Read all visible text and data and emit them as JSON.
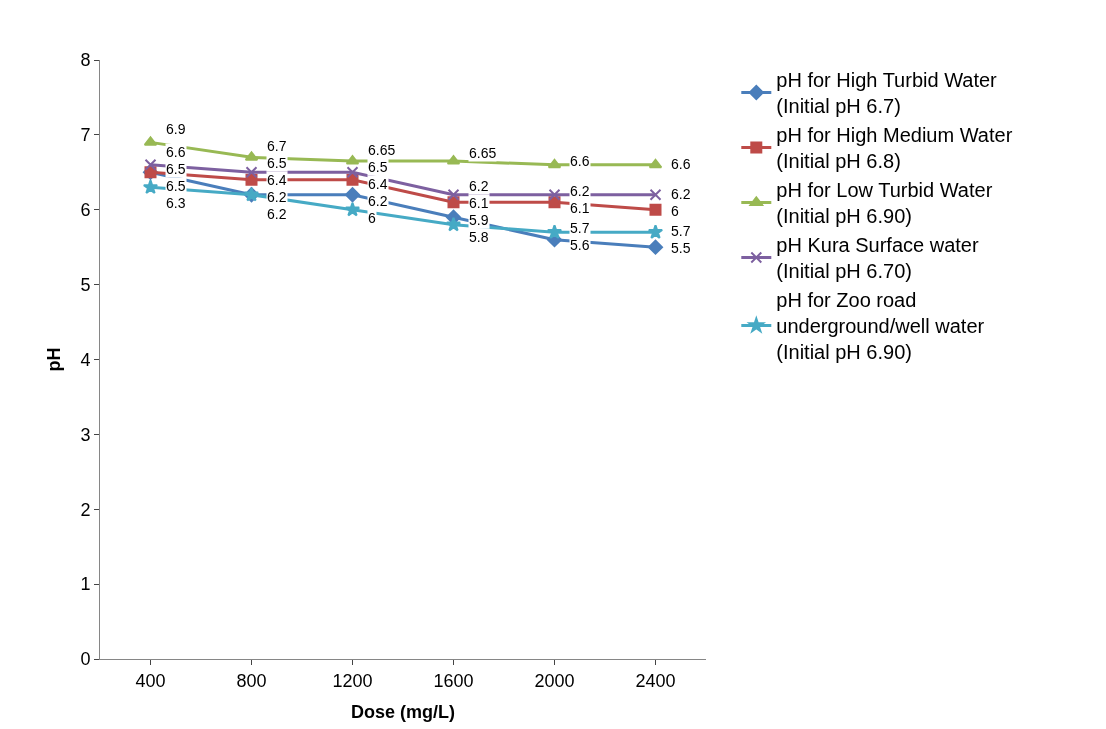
{
  "chart_data": {
    "type": "line",
    "xlabel": "Dose (mg/L)",
    "ylabel": "pH",
    "categories": [
      "400",
      "800",
      "1200",
      "1600",
      "2000",
      "2400"
    ],
    "series": [
      {
        "name": "pH for High Turbid Water (Initial pH 6.7)",
        "color": "#4a7ebb",
        "marker": "diamond",
        "values": [
          6.5,
          6.2,
          6.2,
          5.9,
          5.6,
          5.5
        ],
        "value_labels": [
          "6.5",
          "6.2",
          "6.2",
          "5.9",
          "5.6",
          "5.5"
        ]
      },
      {
        "name": "pH for High Medium Water (Initial pH 6.8)",
        "color": "#be4b48",
        "marker": "square",
        "values": [
          6.5,
          6.4,
          6.4,
          6.1,
          6.1,
          6.0
        ],
        "value_labels": [
          "6.5",
          "6.4",
          "6.4",
          "6.1",
          "6.1",
          "6"
        ]
      },
      {
        "name": "pH for Low Turbid Water (Initial pH 6.90)",
        "color": "#98b954",
        "marker": "triangle",
        "values": [
          6.9,
          6.7,
          6.65,
          6.65,
          6.6,
          6.6
        ],
        "value_labels": [
          "6.9",
          "6.7",
          "6.65",
          "6.65",
          "6.6",
          "6.6"
        ]
      },
      {
        "name": "pH Kura Surface water (Initial pH 6.70)",
        "color": "#7d60a0",
        "marker": "cross",
        "values": [
          6.6,
          6.5,
          6.5,
          6.2,
          6.2,
          6.2
        ],
        "value_labels": [
          "6.6",
          "6.5",
          "6.5",
          "6.2",
          "6.2",
          "6.2"
        ]
      },
      {
        "name": "pH for Zoo road underground/well water (Initial pH 6.90)",
        "color": "#46aac5",
        "marker": "star",
        "values": [
          6.3,
          6.2,
          6.0,
          5.8,
          5.7,
          5.7
        ],
        "value_labels": [
          "6.3",
          "6.2",
          "6",
          "5.8",
          "5.7",
          "5.7"
        ]
      }
    ],
    "ylim": [
      0,
      8
    ],
    "yticks": [
      0,
      1,
      2,
      3,
      4,
      5,
      6,
      7,
      8
    ],
    "legend": "right"
  }
}
